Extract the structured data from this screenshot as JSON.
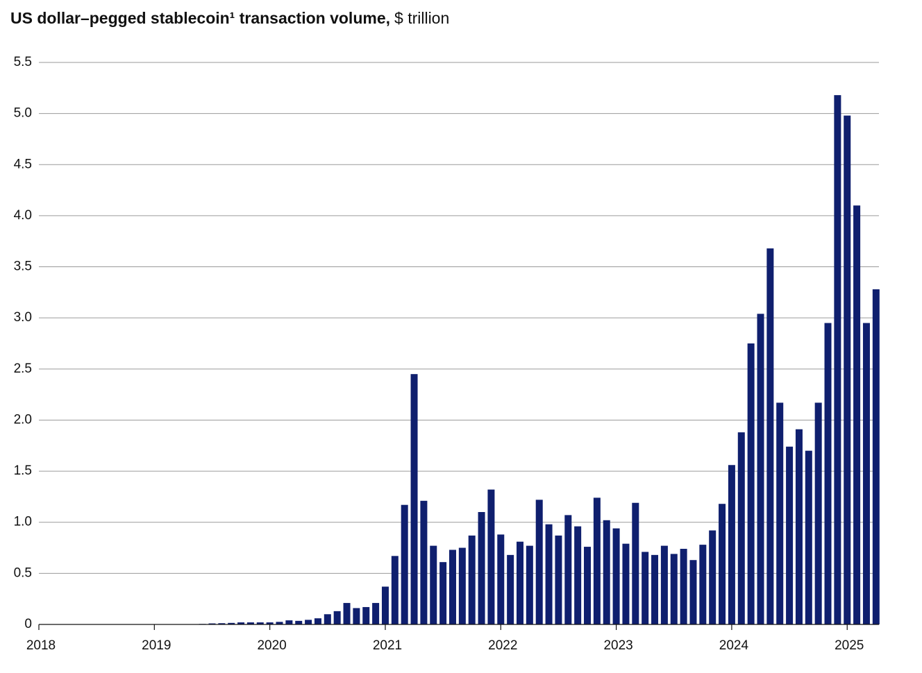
{
  "chart_data": {
    "type": "bar",
    "title": "US dollar–pegged stablecoin¹ transaction volume,",
    "subtitle": "$ trillion",
    "categories": [
      "2018",
      null,
      null,
      null,
      null,
      null,
      null,
      null,
      null,
      null,
      null,
      null,
      "2019",
      null,
      null,
      null,
      null,
      null,
      null,
      null,
      null,
      null,
      null,
      null,
      "2020",
      null,
      null,
      null,
      null,
      null,
      null,
      null,
      null,
      null,
      null,
      null,
      "2021",
      null,
      null,
      null,
      null,
      null,
      null,
      null,
      null,
      null,
      null,
      null,
      "2022",
      null,
      null,
      null,
      null,
      null,
      null,
      null,
      null,
      null,
      null,
      null,
      "2023",
      null,
      null,
      null,
      null,
      null,
      null,
      null,
      null,
      null,
      null,
      null,
      "2024",
      null,
      null,
      null,
      null,
      null,
      null,
      null,
      null,
      null,
      null,
      null,
      "2025",
      null,
      null,
      null
    ],
    "values": [
      0,
      0,
      0,
      0,
      0,
      0,
      0,
      0,
      0,
      0,
      0,
      0,
      0,
      0,
      0,
      0,
      0.003,
      0.005,
      0.01,
      0.012,
      0.015,
      0.02,
      0.02,
      0.02,
      0.02,
      0.025,
      0.04,
      0.035,
      0.045,
      0.06,
      0.1,
      0.13,
      0.21,
      0.16,
      0.17,
      0.21,
      0.37,
      0.67,
      1.17,
      2.45,
      1.21,
      0.77,
      0.61,
      0.73,
      0.75,
      0.87,
      1.1,
      1.32,
      0.88,
      0.68,
      0.81,
      0.77,
      1.22,
      0.98,
      0.87,
      1.07,
      0.96,
      0.76,
      1.24,
      1.02,
      0.94,
      0.79,
      1.19,
      0.71,
      0.68,
      0.77,
      0.69,
      0.74,
      0.63,
      0.78,
      0.92,
      1.18,
      1.56,
      1.88,
      2.75,
      3.04,
      3.68,
      2.17,
      1.74,
      1.91,
      1.7,
      2.17,
      2.95,
      5.18,
      4.98,
      4.1,
      2.95,
      3.28
    ],
    "color": "#0f1f6e",
    "ylim": [
      0,
      5.5
    ],
    "yticks": [
      0,
      0.5,
      {
        "value": 1,
        "label": "1.0"
      },
      1.5,
      {
        "value": 2,
        "label": "2.0"
      },
      2.5,
      {
        "value": 3,
        "label": "3.0"
      },
      3.5,
      {
        "value": 4,
        "label": "4.0"
      },
      4.5,
      {
        "value": 5,
        "label": "5.0"
      },
      5.5
    ],
    "grid": true
  }
}
